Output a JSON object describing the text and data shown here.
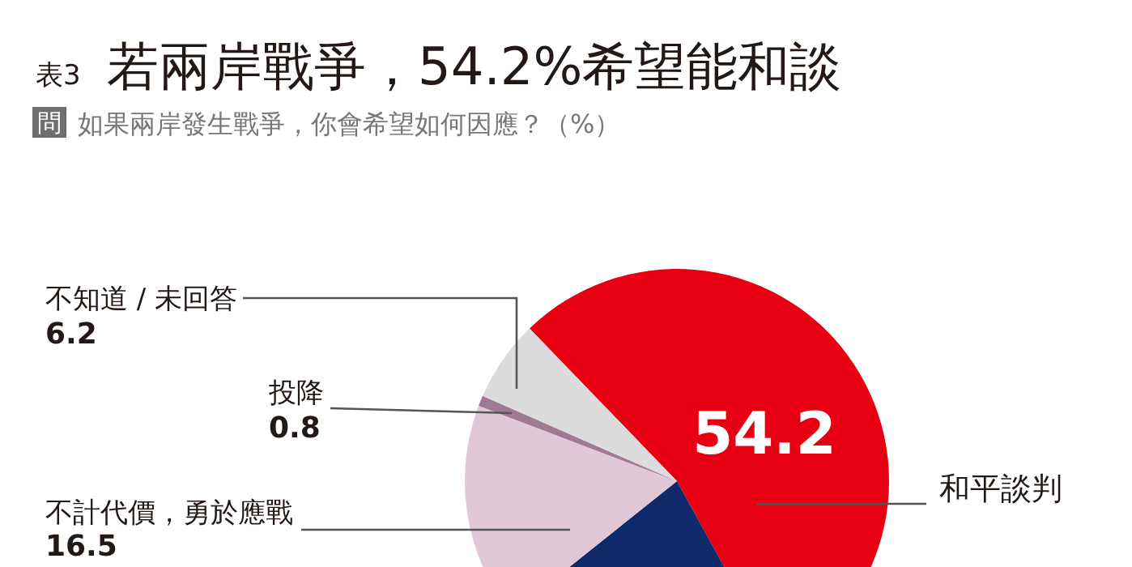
{
  "chart_data": {
    "type": "pie",
    "title": "若兩岸戰爭，54.2%希望能和談",
    "subtitle": "如果兩岸發生戰爭，你會希望如何因應？（%）",
    "annotations": [
      "表3",
      "問"
    ],
    "categories": [
      "和平談判",
      null,
      "不計代價，勇於應戰",
      "投降",
      "不知道 / 未回答"
    ],
    "values": [
      54.2,
      22.3,
      16.5,
      0.8,
      6.2
    ],
    "value_labels": [
      "54.2",
      null,
      "16.5",
      "0.8",
      "6.2"
    ],
    "colors": [
      "#e60012",
      "#0f2a6b",
      "#e2c8d6",
      "#a07a92",
      "#dcdcdc"
    ]
  }
}
